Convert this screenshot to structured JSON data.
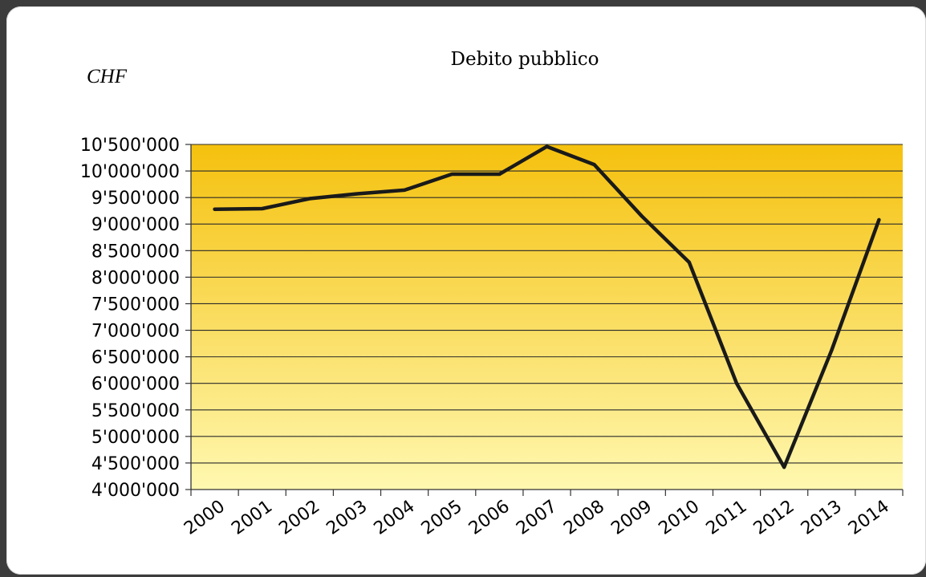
{
  "chart_data": {
    "type": "line",
    "title": "Debito pubblico",
    "unit_label": "CHF",
    "xlabel": "",
    "ylabel": "",
    "x": [
      "2000",
      "2001",
      "2002",
      "2003",
      "2004",
      "2005",
      "2006",
      "2007",
      "2008",
      "2009",
      "2010",
      "2011",
      "2012",
      "2013",
      "2014"
    ],
    "series": [
      {
        "values": [
          9280000,
          9290000,
          9480000,
          9570000,
          9640000,
          9940000,
          9940000,
          10460000,
          10120000,
          9150000,
          8280000,
          6000000,
          4420000,
          6620000,
          9080000
        ]
      }
    ],
    "ylim": [
      4000000,
      10500000
    ],
    "yticks": [
      4000000,
      4500000,
      5000000,
      5500000,
      6000000,
      6500000,
      7000000,
      7500000,
      8000000,
      8500000,
      9000000,
      9500000,
      10000000,
      10500000
    ],
    "ytick_labels": [
      "4'000'000",
      "4'500'000",
      "5'000'000",
      "5'500'000",
      "6'000'000",
      "6'500'000",
      "7'000'000",
      "7'500'000",
      "8'000'000",
      "8'500'000",
      "9'000'000",
      "9'500'000",
      "10'000'000",
      "10'500'000"
    ],
    "grid": true,
    "legend": "none",
    "colors": {
      "line": "#1a1a1a",
      "plot_top": "#f5c10e",
      "plot_bottom": "#fff8b0",
      "grid": "#2a2a2a"
    }
  }
}
